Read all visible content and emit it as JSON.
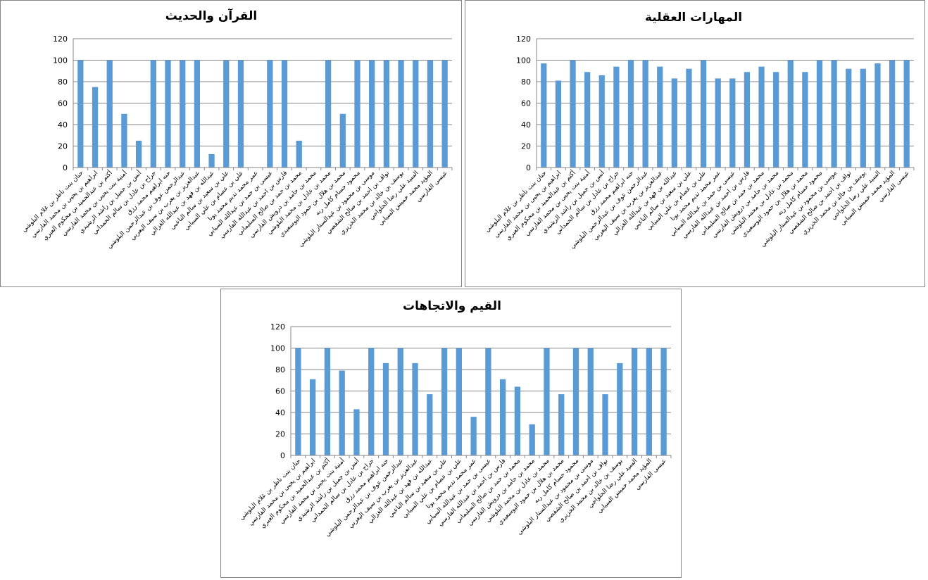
{
  "categories": [
    "حنان بنت ناظر بن غلام البلوشي",
    "ابراهيم بن يحيى بن محمد الفارسي",
    "أكثم بن عبدالحميد بن محكوم العبري",
    "أمنية بنت يحيى بن محمد الفارسي",
    "أنس بن جميل بن راشد الرشيدي",
    "جراح بن عادل بن سالم الحمداني",
    "حنه ابراهيم محمد رزق",
    "عبدالرحمن عوف بن عبدالرحمن البلوشي",
    "عبدالعزيز بن يعرب بن سيف اليعربي",
    "عبدالله بن فهد بن عبدالله الغزالي",
    "علي بن سعيد بن سالم الناعبي",
    "علي بن عصام بن علي السيابي",
    "عمر محمد نديم محمد يونا",
    "عيسى بن حمد بن عبدالله السيابي",
    "فارس بن احمد بن عبدالله الفارسي",
    "محمد بن حمد بن صالح السليماني",
    "محمد بن حامد بن درويش الفارسي",
    "محمد بن عادل بن محمد البلوشي",
    "محمد بن هلال بن حمود اليوسعيدي",
    "محمود حسام كامل ربه",
    "موسى بن محمود بن عبدالستار البلوشي",
    "نواف بن احمد بن صالح الشقصي",
    "يوسف بن خالد بن محمد الخزيري",
    "السيد علي رضا الحلواجي",
    "المؤيد محمد خميس السيابي",
    "عيسى الفارسي"
  ],
  "chart_data": [
    {
      "type": "bar",
      "title": "القرآن والحديث",
      "ylim": [
        0,
        120
      ],
      "yticks": [
        0,
        20,
        40,
        60,
        80,
        100,
        120
      ],
      "values": [
        100,
        75,
        100,
        50,
        25,
        100,
        100,
        100,
        100,
        12.5,
        100,
        100,
        0,
        100,
        100,
        25,
        0,
        100,
        50,
        100,
        100,
        100,
        100,
        100,
        100,
        100
      ],
      "color": "#5B9BD5",
      "grid": true,
      "legend": "none"
    },
    {
      "type": "bar",
      "title": "المهارات العقلية",
      "ylim": [
        0,
        120
      ],
      "yticks": [
        0,
        20,
        40,
        60,
        80,
        100,
        120
      ],
      "values": [
        97,
        81,
        100,
        89,
        86,
        94,
        100,
        100,
        94,
        83,
        92,
        100,
        83,
        83,
        89,
        94,
        89,
        100,
        89,
        100,
        100,
        92,
        92,
        97,
        100,
        100
      ],
      "color": "#5B9BD5",
      "grid": true,
      "legend": "none"
    },
    {
      "type": "bar",
      "title": "القيم والاتجاهات",
      "ylim": [
        0,
        120
      ],
      "yticks": [
        0,
        20,
        40,
        60,
        80,
        100,
        120
      ],
      "values": [
        100,
        71,
        100,
        79,
        43,
        100,
        86,
        100,
        86,
        57,
        100,
        100,
        36,
        100,
        71,
        64,
        29,
        100,
        57,
        100,
        100,
        57,
        86,
        100,
        100,
        100
      ],
      "color": "#5B9BD5",
      "grid": true,
      "legend": "none"
    }
  ]
}
